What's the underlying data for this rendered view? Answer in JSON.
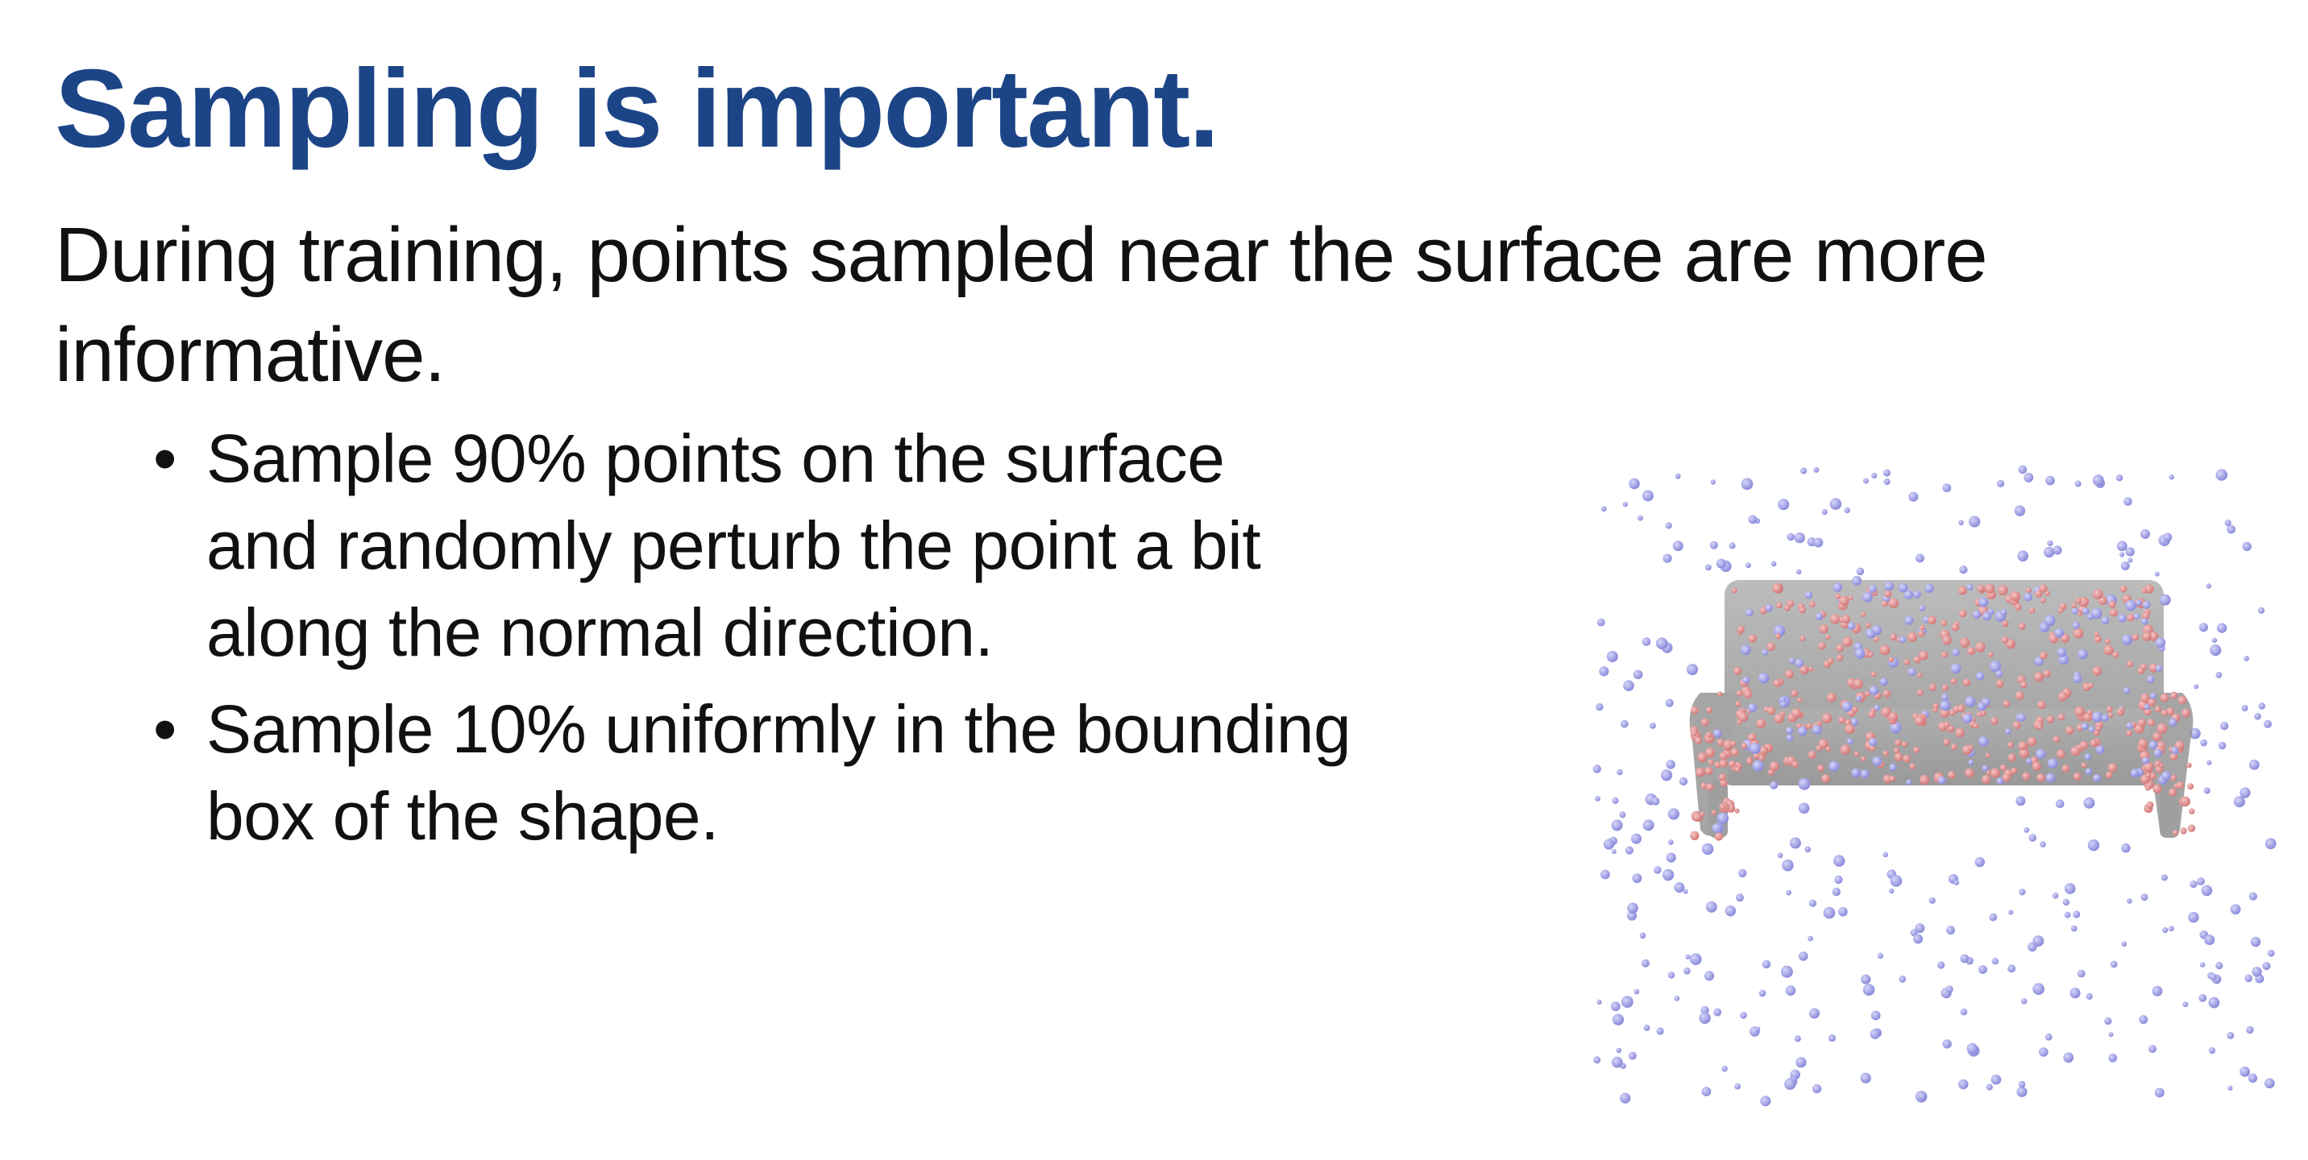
{
  "slide": {
    "title": "Sampling is important.",
    "lead": "During training, points sampled near the surface are more informative.",
    "bullets": [
      {
        "text": "Sample 90% points on the surface\nand randomly perturb the point a bit\nalong the normal direction."
      },
      {
        "text": "Sample 10% uniformly in the bounding\nbox of the shape."
      }
    ],
    "bullet_glyph": "•"
  },
  "figure": {
    "subject": "sofa-bench-shape",
    "colors": {
      "shape": "#9e9e9e",
      "surface_points": "#e08a8a",
      "uniform_points": "#9a9ae6"
    }
  }
}
